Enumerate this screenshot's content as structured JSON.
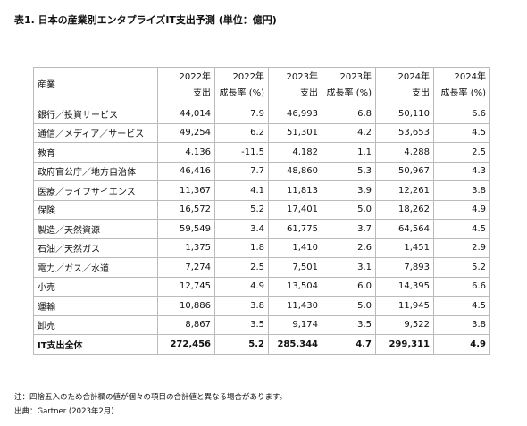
{
  "title": "表1. 日本の産業別エンタプライズIT支出予測 (単位：億円)",
  "table": {
    "corner": "産業",
    "columns": [
      {
        "year": "2022年",
        "label": "支出"
      },
      {
        "year": "2022年",
        "label": "成長率 (%)"
      },
      {
        "year": "2023年",
        "label": "支出"
      },
      {
        "year": "2023年",
        "label": "成長率 (%)"
      },
      {
        "year": "2024年",
        "label": "支出"
      },
      {
        "year": "2024年",
        "label": "成長率 (%)"
      }
    ],
    "rows": [
      {
        "name": "銀行／投資サービス",
        "cells": [
          "44,014",
          "7.9",
          "46,993",
          "6.8",
          "50,110",
          "6.6"
        ]
      },
      {
        "name": "通信／メディア／サービス",
        "cells": [
          "49,254",
          "6.2",
          "51,301",
          "4.2",
          "53,653",
          "4.5"
        ]
      },
      {
        "name": "教育",
        "cells": [
          "4,136",
          "-11.5",
          "4,182",
          "1.1",
          "4,288",
          "2.5"
        ]
      },
      {
        "name": "政府官公庁／地方自治体",
        "cells": [
          "46,416",
          "7.7",
          "48,860",
          "5.3",
          "50,967",
          "4.3"
        ]
      },
      {
        "name": "医療／ライフサイエンス",
        "cells": [
          "11,367",
          "4.1",
          "11,813",
          "3.9",
          "12,261",
          "3.8"
        ]
      },
      {
        "name": "保険",
        "cells": [
          "16,572",
          "5.2",
          "17,401",
          "5.0",
          "18,262",
          "4.9"
        ]
      },
      {
        "name": "製造／天然資源",
        "cells": [
          "59,549",
          "3.4",
          "61,775",
          "3.7",
          "64,564",
          "4.5"
        ]
      },
      {
        "name": "石油／天然ガス",
        "cells": [
          "1,375",
          "1.8",
          "1,410",
          "2.6",
          "1,451",
          "2.9"
        ]
      },
      {
        "name": "電力／ガス／水道",
        "cells": [
          "7,274",
          "2.5",
          "7,501",
          "3.1",
          "7,893",
          "5.2"
        ]
      },
      {
        "name": "小売",
        "cells": [
          "12,745",
          "4.9",
          "13,504",
          "6.0",
          "14,395",
          "6.6"
        ]
      },
      {
        "name": "運輸",
        "cells": [
          "10,886",
          "3.8",
          "11,430",
          "5.0",
          "11,945",
          "4.5"
        ]
      },
      {
        "name": "卸売",
        "cells": [
          "8,867",
          "3.5",
          "9,174",
          "3.5",
          "9,522",
          "3.8"
        ]
      },
      {
        "name": "IT支出全体",
        "cells": [
          "272,456",
          "5.2",
          "285,344",
          "4.7",
          "299,311",
          "4.9"
        ]
      }
    ]
  },
  "notes": [
    "注：四捨五入のため合計欄の値が個々の項目の合計値と異なる場合があります。",
    "出典：Gartner (2023年2月)"
  ]
}
